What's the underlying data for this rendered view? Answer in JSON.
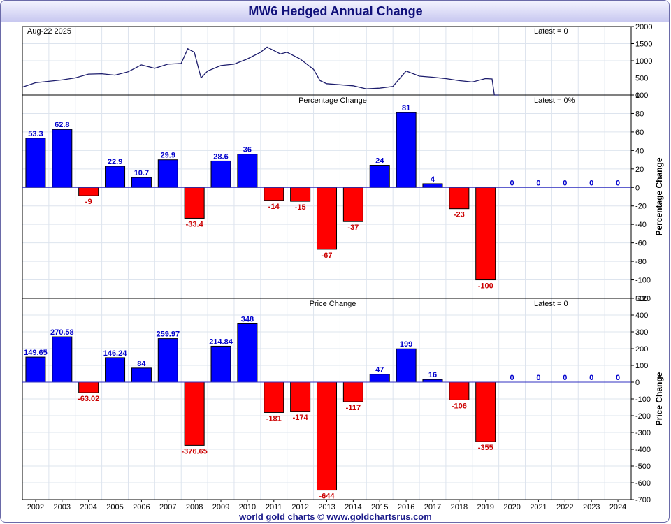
{
  "title": "MW6 Hedged Annual Change",
  "footer": "world gold charts © www.goldchartsrus.com",
  "colors": {
    "up": "#0000ff",
    "down": "#ff0000",
    "line": "#1c1c6c",
    "grid": "#dde4ee",
    "title": "#10107a",
    "up_label": "#0000cc",
    "down_label": "#cc0000"
  },
  "chart_data": [
    {
      "type": "line",
      "panel": "price",
      "date_label": "Aug-22  2025",
      "latest_label": "Latest = 0",
      "ylim": [
        0,
        2000
      ],
      "yticks": [
        0,
        500,
        1000,
        1500,
        2000
      ],
      "x": [
        "2002-01",
        "2002-07",
        "2003-01",
        "2003-07",
        "2004-01",
        "2004-07",
        "2005-01",
        "2005-07",
        "2006-01",
        "2006-07",
        "2007-01",
        "2007-07",
        "2008-01",
        "2008-04",
        "2008-07",
        "2008-10",
        "2009-01",
        "2009-07",
        "2010-01",
        "2010-07",
        "2011-01",
        "2011-04",
        "2011-07",
        "2011-10",
        "2012-01",
        "2012-07",
        "2013-01",
        "2013-04",
        "2013-07",
        "2014-01",
        "2014-07",
        "2015-01",
        "2015-07",
        "2016-01",
        "2016-07",
        "2017-01",
        "2017-07",
        "2018-01",
        "2018-07",
        "2019-01",
        "2019-07",
        "2019-10",
        "2019-11",
        "2020-01"
      ],
      "values": [
        230,
        360,
        400,
        440,
        500,
        610,
        620,
        580,
        680,
        880,
        780,
        900,
        920,
        1350,
        1250,
        500,
        700,
        860,
        900,
        1050,
        1250,
        1400,
        1300,
        1200,
        1250,
        1050,
        750,
        420,
        330,
        300,
        270,
        180,
        200,
        250,
        700,
        550,
        520,
        480,
        420,
        380,
        480,
        470,
        0,
        0
      ]
    },
    {
      "type": "bar",
      "panel": "percentage",
      "title": "Percentage Change",
      "ylabel": "Percentage Change",
      "latest_label": "Latest = 0%",
      "ylim": [
        -120,
        100
      ],
      "yticks": [
        -120,
        -100,
        -80,
        -60,
        -40,
        -20,
        0,
        20,
        40,
        60,
        80,
        100
      ],
      "categories": [
        "2002",
        "2003",
        "2004",
        "2005",
        "2006",
        "2007",
        "2008",
        "2009",
        "2010",
        "2011",
        "2012",
        "2013",
        "2014",
        "2015",
        "2016",
        "2017",
        "2018",
        "2019",
        "2020",
        "2021",
        "2022",
        "2023",
        "2024"
      ],
      "values": [
        53.3,
        62.8,
        -9,
        22.9,
        10.7,
        29.9,
        -33.4,
        28.6,
        36,
        -14,
        -15,
        -67,
        -37,
        24,
        81,
        4,
        -23,
        -100,
        0,
        0,
        0,
        0,
        0
      ],
      "labels": [
        "53.3",
        "62.8",
        "-9",
        "22.9",
        "10.7",
        "29.9",
        "-33.4",
        "28.6",
        "36",
        "-14",
        "-15",
        "-67",
        "-37",
        "24",
        "81",
        "4",
        "-23",
        "-100",
        "0",
        "0",
        "0",
        "0",
        "0"
      ]
    },
    {
      "type": "bar",
      "panel": "price_change",
      "title": "Price Change",
      "ylabel": "Price Change",
      "latest_label": "Latest = 0",
      "ylim": [
        -700,
        500
      ],
      "yticks": [
        -700,
        -600,
        -500,
        -400,
        -300,
        -200,
        -100,
        0,
        100,
        200,
        300,
        400,
        500
      ],
      "categories": [
        "2002",
        "2003",
        "2004",
        "2005",
        "2006",
        "2007",
        "2008",
        "2009",
        "2010",
        "2011",
        "2012",
        "2013",
        "2014",
        "2015",
        "2016",
        "2017",
        "2018",
        "2019",
        "2020",
        "2021",
        "2022",
        "2023",
        "2024"
      ],
      "values": [
        149.65,
        270.58,
        -63.02,
        146.24,
        84,
        259.97,
        -376.65,
        214.84,
        348,
        -181,
        -174,
        -644,
        -117,
        47,
        199,
        16,
        -106,
        -355,
        0,
        0,
        0,
        0,
        0
      ],
      "labels": [
        "149.65",
        "270.58",
        "-63.02",
        "146.24",
        "84",
        "259.97",
        "-376.65",
        "214.84",
        "348",
        "-181",
        "-174",
        "-644",
        "-117",
        "47",
        "199",
        "16",
        "-106",
        "-355",
        "0",
        "0",
        "0",
        "0",
        "0"
      ]
    }
  ]
}
